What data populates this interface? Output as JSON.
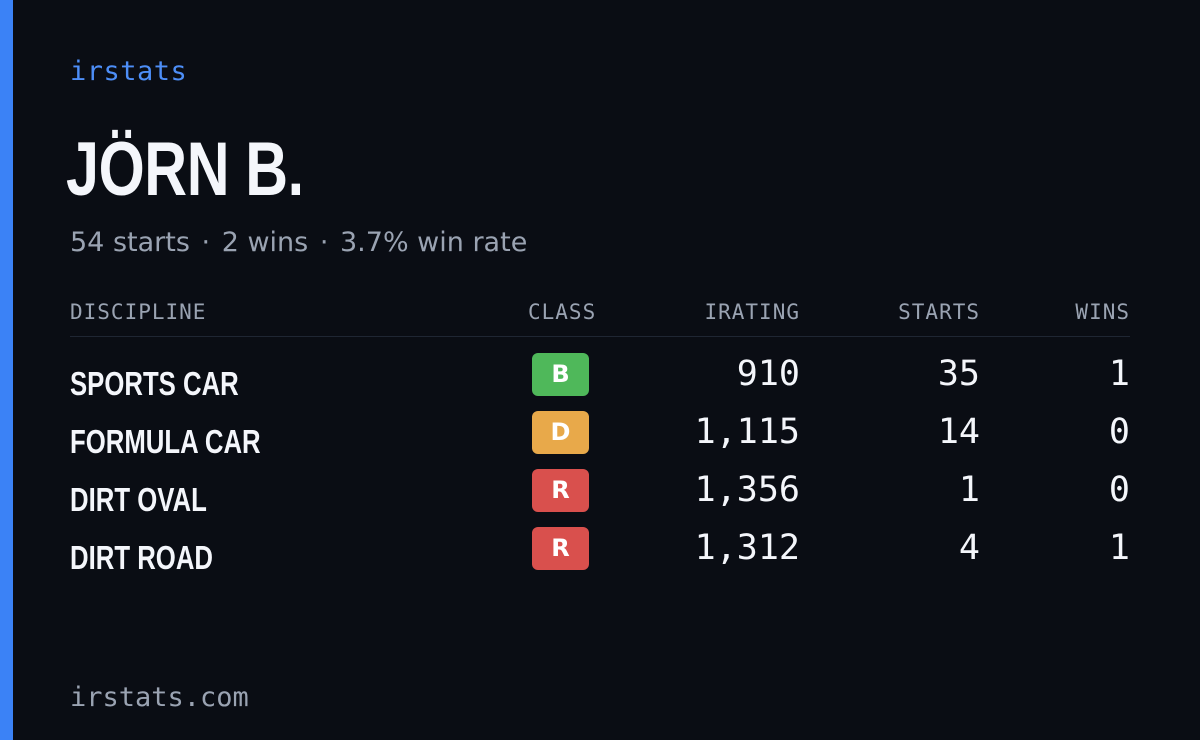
{
  "header": {
    "brand": "irstats",
    "player_name": "JÖRN B.",
    "summary": {
      "starts": "54 starts",
      "wins": "2 wins",
      "win_rate": "3.7% win rate",
      "separator": "·"
    }
  },
  "table": {
    "columns": [
      "DISCIPLINE",
      "CLASS",
      "IRATING",
      "STARTS",
      "WINS"
    ],
    "rows": [
      {
        "discipline": "SPORTS CAR",
        "class": "B",
        "class_color": "#4fb85a",
        "irating": "910",
        "starts": "35",
        "wins": "1"
      },
      {
        "discipline": "FORMULA CAR",
        "class": "D",
        "class_color": "#e8a94a",
        "irating": "1,115",
        "starts": "14",
        "wins": "0"
      },
      {
        "discipline": "DIRT OVAL",
        "class": "R",
        "class_color": "#d9504d",
        "irating": "1,356",
        "starts": "1",
        "wins": "0"
      },
      {
        "discipline": "DIRT ROAD",
        "class": "R",
        "class_color": "#d9504d",
        "irating": "1,312",
        "starts": "4",
        "wins": "1"
      }
    ]
  },
  "footer": {
    "domain": "irstats.com"
  },
  "colors": {
    "background": "#0a0d14",
    "accent": "#3b82f6",
    "text_primary": "#f4f6fb",
    "text_muted": "#9aa3b2"
  }
}
